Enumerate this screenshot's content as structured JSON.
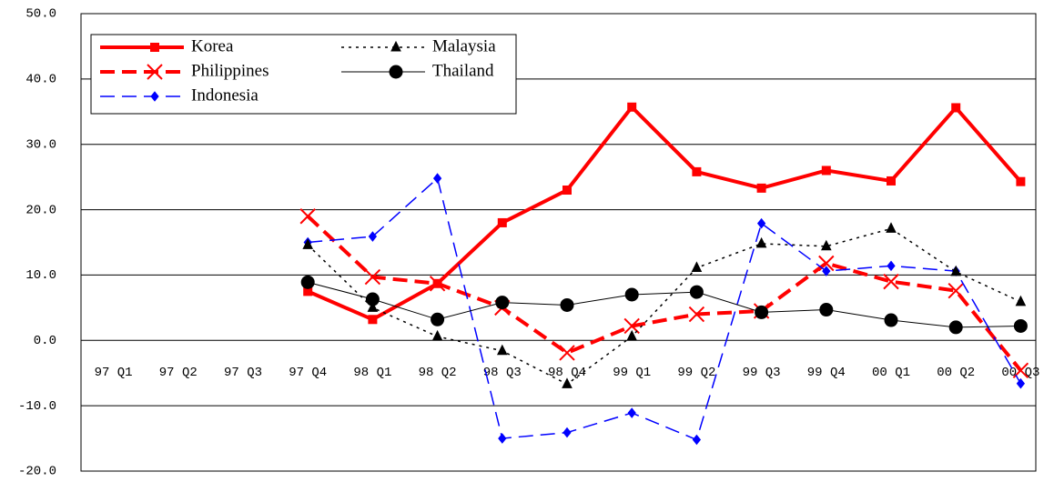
{
  "chart_data": {
    "type": "line",
    "categories": [
      "97 Q1",
      "97 Q2",
      "97 Q3",
      "97 Q4",
      "98 Q1",
      "98 Q2",
      "98 Q3",
      "98 Q4",
      "99 Q1",
      "99 Q2",
      "99 Q3",
      "99 Q4",
      "00 Q1",
      "00 Q2",
      "00 Q3"
    ],
    "series": [
      {
        "name": "Korea",
        "color": "#ff0000",
        "marker": "square",
        "line_style": "solid",
        "line_width": 4,
        "values": [
          null,
          null,
          null,
          7.5,
          3.2,
          8.7,
          18.0,
          23.0,
          35.7,
          25.8,
          23.3,
          26.0,
          24.4,
          35.6,
          24.3
        ]
      },
      {
        "name": "Philippines",
        "color": "#ff0000",
        "marker": "x",
        "line_style": "dashed",
        "line_width": 4,
        "values": [
          null,
          null,
          null,
          19.0,
          9.7,
          8.7,
          5.0,
          -1.9,
          2.2,
          4.0,
          4.5,
          11.8,
          9.0,
          7.6,
          -4.6
        ]
      },
      {
        "name": "Indonesia",
        "color": "#0000ff",
        "marker": "diamond",
        "line_style": "dashed",
        "line_width": 1.5,
        "values": [
          null,
          null,
          null,
          15.0,
          15.9,
          24.8,
          -15.0,
          -14.1,
          -11.1,
          -15.2,
          17.9,
          10.6,
          11.4,
          10.6,
          -6.6
        ]
      },
      {
        "name": "Malaysia",
        "color": "#000000",
        "marker": "triangle",
        "line_style": "dotted",
        "line_width": 1.5,
        "values": [
          null,
          null,
          null,
          14.6,
          5.0,
          0.6,
          -1.6,
          -6.7,
          0.6,
          11.1,
          14.8,
          14.4,
          17.1,
          10.5,
          5.9
        ]
      },
      {
        "name": "Thailand",
        "color": "#000000",
        "marker": "circle",
        "line_style": "solid",
        "line_width": 1,
        "values": [
          null,
          null,
          null,
          8.9,
          6.3,
          3.2,
          5.8,
          5.4,
          7.0,
          7.4,
          4.3,
          4.7,
          3.1,
          2.0,
          2.2
        ]
      }
    ],
    "ylim": [
      -20,
      50
    ],
    "yticks": [
      {
        "value": -20,
        "label": "-20.0"
      },
      {
        "value": -10,
        "label": "-10.0"
      },
      {
        "value": 0,
        "label": "0.0"
      },
      {
        "value": 10,
        "label": "10.0"
      },
      {
        "value": 20,
        "label": "20.0"
      },
      {
        "value": 30,
        "label": "30.0"
      },
      {
        "value": 40,
        "label": "40.0"
      },
      {
        "value": 50,
        "label": "50.0"
      }
    ],
    "grid": true,
    "legend": "upper left"
  }
}
